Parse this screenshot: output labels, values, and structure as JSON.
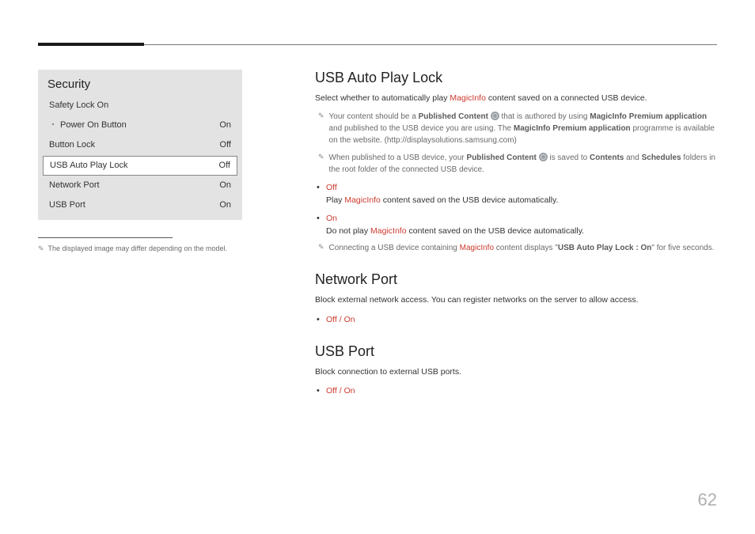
{
  "page_number": "62",
  "colors": {
    "red": "#cc3a2e",
    "panel_bg": "#e3e3e3",
    "grey_text": "#6a6a6a"
  },
  "panel": {
    "title": "Security",
    "rows": [
      {
        "label": "Safety Lock On",
        "value": "",
        "indent": false,
        "selected": false
      },
      {
        "label": "Power On Button",
        "value": "On",
        "indent": true,
        "selected": false
      },
      {
        "label": "Button Lock",
        "value": "Off",
        "indent": false,
        "selected": false
      },
      {
        "label": "USB Auto Play Lock",
        "value": "Off",
        "indent": false,
        "selected": true
      },
      {
        "label": "Network Port",
        "value": "On",
        "indent": false,
        "selected": false
      },
      {
        "label": "USB Port",
        "value": "On",
        "indent": false,
        "selected": false
      }
    ],
    "footnote": "The displayed image may differ depending on the model."
  },
  "sections": {
    "usb": {
      "heading": "USB Auto Play Lock",
      "intro_a": "Select whether to automatically play ",
      "intro_red": "MagicInfo",
      "intro_b": " content saved on a connected USB device.",
      "note1_a": "Your content should be a ",
      "note1_bold1": "Published Content ",
      "note1_b": " that is authored by using ",
      "note1_bold2": "MagicInfo Premium application",
      "note1_c": " and published to the USB device you are using. The ",
      "note1_bold3": "MagicInfo Premium application",
      "note1_d": " programme is available on the website. (http://displaysolutions.samsung.com)",
      "note2_a": "When published to a USB device, your ",
      "note2_bold1": "Published Content ",
      "note2_b": " is saved to ",
      "note2_bold2": "Contents",
      "note2_c": " and ",
      "note2_bold3": "Schedules",
      "note2_d": " folders in the root folder of the connected USB device.",
      "off_label": "Off",
      "off_a": "Play ",
      "off_red": "MagicInfo",
      "off_b": " content saved on the USB device automatically.",
      "on_label": "On",
      "on_a": "Do not play ",
      "on_red": "MagicInfo",
      "on_b": " content saved on the USB device automatically.",
      "note3_a": "Connecting a USB device containing ",
      "note3_red": "MagicInfo",
      "note3_b": " content displays \"",
      "note3_bold": "USB Auto Play Lock : On",
      "note3_c": "\" for five seconds."
    },
    "network": {
      "heading": "Network Port",
      "body": "Block external network access. You can register networks on the server to allow access.",
      "opt": "Off / On"
    },
    "usbport": {
      "heading": "USB Port",
      "body": "Block connection to external USB ports.",
      "opt": "Off / On"
    }
  }
}
